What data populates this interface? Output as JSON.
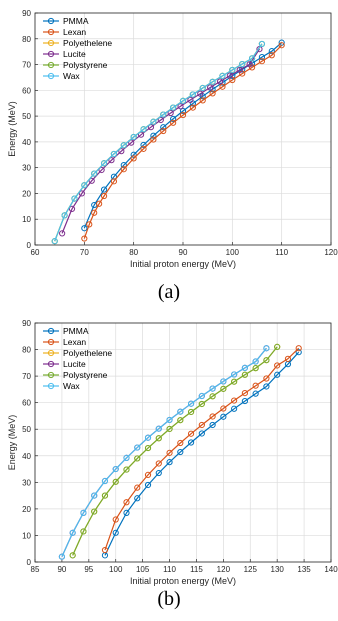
{
  "chart_data": [
    {
      "type": "line",
      "panel_label": "(a)",
      "xlabel": "Initial proton energy (MeV)",
      "ylabel": "Energy (MeV)",
      "xlim": [
        60,
        120
      ],
      "ylim": [
        0,
        90
      ],
      "xticks": [
        "60",
        "70",
        "80",
        "90",
        "100",
        "110",
        "120"
      ],
      "yticks": [
        "0",
        "10",
        "20",
        "30",
        "40",
        "50",
        "60",
        "70",
        "80",
        "90"
      ],
      "grid": true,
      "legend_position": "top-left",
      "series": [
        {
          "name": "PMMA",
          "color": "#0072BD",
          "x": [
            70,
            72,
            74,
            76,
            78,
            80,
            82,
            84,
            86,
            88,
            90,
            92,
            94,
            96,
            98,
            100,
            102,
            104,
            106,
            108,
            110
          ],
          "y": [
            6.5,
            15.5,
            21.5,
            26.5,
            31,
            35,
            38.8,
            42.4,
            45.7,
            48.9,
            52,
            54.9,
            57.7,
            60.4,
            63,
            65.6,
            68.1,
            70.5,
            72.9,
            75.2,
            78.5
          ]
        },
        {
          "name": "Lexan",
          "color": "#D95319",
          "x": [
            70,
            71,
            72,
            73,
            74,
            76,
            78,
            80,
            82,
            84,
            86,
            88,
            90,
            92,
            94,
            96,
            98,
            100,
            102,
            104,
            106,
            108,
            110
          ],
          "y": [
            2.5,
            8,
            12.5,
            16,
            19,
            24.7,
            29.4,
            33.6,
            37.3,
            40.9,
            44.2,
            47.4,
            50.4,
            53.3,
            56.1,
            58.8,
            61.4,
            64,
            66.5,
            68.9,
            71.3,
            73.6,
            77.5
          ]
        },
        {
          "name": "Polyethelene",
          "color": "#EDB120",
          "x": [
            64,
            66,
            68,
            70,
            72,
            74,
            76,
            78,
            80,
            82,
            84,
            86,
            88,
            90,
            92,
            94,
            96,
            98,
            100,
            102,
            104,
            106
          ],
          "y": [
            1.5,
            11.5,
            18,
            23.2,
            27.7,
            31.7,
            35.3,
            38.7,
            41.9,
            44.9,
            47.8,
            50.6,
            53.3,
            55.9,
            58.4,
            60.9,
            63.3,
            65.6,
            67.9,
            70.2,
            72.4,
            78
          ]
        },
        {
          "name": "Lucite",
          "color": "#7E2F8E",
          "x": [
            65.5,
            67.5,
            69.5,
            71.5,
            73.5,
            75.5,
            77.5,
            79.5,
            81.5,
            83.5,
            85.5,
            87.5,
            89.5,
            91.5,
            93.5,
            95.5,
            97.5,
            99.5,
            101.5,
            103.5,
            105.5
          ],
          "y": [
            4.5,
            14,
            20,
            24.9,
            29.1,
            32.9,
            36.4,
            39.7,
            42.8,
            45.7,
            48.5,
            51.2,
            53.8,
            56.3,
            58.7,
            61.1,
            63.4,
            65.7,
            67.9,
            70.1,
            76
          ]
        },
        {
          "name": "Polystyrene",
          "color": "#77AC30",
          "x": [
            64,
            66,
            68,
            70,
            72,
            74,
            76,
            78,
            80,
            82,
            84,
            86,
            88,
            90,
            92,
            94,
            96,
            98,
            100,
            102,
            104,
            106
          ],
          "y": [
            1.5,
            11.5,
            18,
            23.2,
            27.7,
            31.7,
            35.3,
            38.7,
            41.9,
            44.9,
            47.8,
            50.6,
            53.3,
            55.9,
            58.4,
            60.9,
            63.3,
            65.6,
            67.9,
            70.2,
            72.4,
            78
          ]
        },
        {
          "name": "Wax",
          "color": "#4DBEEE",
          "x": [
            64,
            66,
            68,
            70,
            72,
            74,
            76,
            78,
            80,
            82,
            84,
            86,
            88,
            90,
            92,
            94,
            96,
            98,
            100,
            102,
            104,
            106
          ],
          "y": [
            1.5,
            11.5,
            18,
            23.2,
            27.7,
            31.7,
            35.3,
            38.7,
            41.9,
            44.9,
            47.8,
            50.6,
            53.3,
            55.9,
            58.4,
            60.9,
            63.3,
            65.6,
            67.9,
            70.2,
            72.4,
            78
          ]
        }
      ]
    },
    {
      "type": "line",
      "panel_label": "(b)",
      "xlabel": "Initial proton energy (MeV)",
      "ylabel": "Energy (MeV)",
      "xlim": [
        85,
        140
      ],
      "ylim": [
        0,
        90
      ],
      "xticks": [
        "85",
        "90",
        "95",
        "100",
        "105",
        "110",
        "115",
        "120",
        "125",
        "130",
        "135",
        "140"
      ],
      "yticks": [
        "0",
        "10",
        "20",
        "30",
        "40",
        "50",
        "60",
        "70",
        "80",
        "90"
      ],
      "grid": true,
      "legend_position": "top-left",
      "series": [
        {
          "name": "PMMA",
          "color": "#0072BD",
          "x": [
            98,
            100,
            102,
            104,
            106,
            108,
            110,
            112,
            114,
            116,
            118,
            120,
            122,
            124,
            126,
            128,
            130,
            132,
            134
          ],
          "y": [
            2.5,
            11,
            18.5,
            24,
            29,
            33.5,
            37.6,
            41.4,
            45,
            48.4,
            51.6,
            54.7,
            57.7,
            60.6,
            63.4,
            66.1,
            70.5,
            74.5,
            79
          ]
        },
        {
          "name": "Lexan",
          "color": "#D95319",
          "x": [
            98,
            100,
            102,
            104,
            106,
            108,
            110,
            112,
            114,
            116,
            118,
            120,
            122,
            124,
            126,
            128,
            130,
            132,
            134
          ],
          "y": [
            4.5,
            16,
            22.5,
            28,
            32.8,
            37.1,
            41.1,
            44.8,
            48.3,
            51.6,
            54.8,
            57.8,
            60.8,
            63.6,
            66.4,
            69.1,
            74,
            76.5,
            80.5
          ]
        },
        {
          "name": "Polyethelene",
          "color": "#EDB120",
          "x": [
            92,
            94,
            96,
            98,
            100,
            102,
            104,
            106,
            108,
            110,
            112,
            114,
            116,
            118,
            120,
            122,
            124,
            126,
            128,
            130
          ],
          "y": [
            2.5,
            11.5,
            19,
            25,
            30.2,
            34.8,
            39,
            42.9,
            46.6,
            50.1,
            53.4,
            56.5,
            59.5,
            62.4,
            65.2,
            67.9,
            70.5,
            73,
            76,
            81
          ]
        },
        {
          "name": "Lucite",
          "color": "#7E2F8E",
          "x": [
            90,
            92,
            94,
            96,
            98,
            100,
            102,
            104,
            106,
            108,
            110,
            112,
            114,
            116,
            118,
            120,
            122,
            124,
            126,
            128
          ],
          "y": [
            2,
            11,
            18.5,
            25,
            30.5,
            35,
            39.2,
            43.1,
            46.8,
            50.2,
            53.5,
            56.6,
            59.6,
            62.5,
            65.3,
            68,
            70.6,
            73.1,
            75.5,
            80.5
          ]
        },
        {
          "name": "Polystyrene",
          "color": "#77AC30",
          "x": [
            92,
            94,
            96,
            98,
            100,
            102,
            104,
            106,
            108,
            110,
            112,
            114,
            116,
            118,
            120,
            122,
            124,
            126,
            128,
            130
          ],
          "y": [
            2.5,
            11.5,
            19,
            25,
            30.2,
            34.8,
            39,
            42.9,
            46.6,
            50.1,
            53.4,
            56.5,
            59.5,
            62.4,
            65.2,
            67.9,
            70.5,
            73,
            76,
            81
          ]
        },
        {
          "name": "Wax",
          "color": "#4DBEEE",
          "x": [
            90,
            92,
            94,
            96,
            98,
            100,
            102,
            104,
            106,
            108,
            110,
            112,
            114,
            116,
            118,
            120,
            122,
            124,
            126,
            128
          ],
          "y": [
            2,
            11,
            18.5,
            25,
            30.5,
            35,
            39.2,
            43.1,
            46.8,
            50.2,
            53.5,
            56.6,
            59.6,
            62.5,
            65.3,
            68,
            70.6,
            73.1,
            75.5,
            80.5
          ]
        }
      ]
    }
  ]
}
